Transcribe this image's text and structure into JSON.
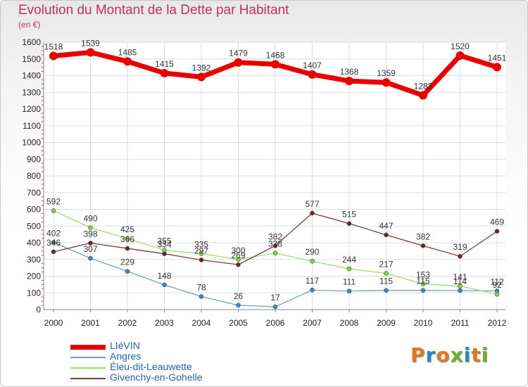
{
  "header": {
    "title": "Evolution du Montant de la Dette par Habitant",
    "subtitle": "(en €)"
  },
  "logo": {
    "text": "Proxiti",
    "colors": [
      "#e07820",
      "#2a86c8",
      "#e07820",
      "#6ab02e",
      "#2a86c8",
      "#e07820",
      "#6ab02e"
    ]
  },
  "chart_data": {
    "type": "line",
    "title": "Evolution du Montant de la Dette par Habitant",
    "subtitle": "(en €)",
    "xlabel": "",
    "ylabel": "",
    "x": [
      "2000",
      "2001",
      "2002",
      "2003",
      "2004",
      "2005",
      "2006",
      "2007",
      "2008",
      "2009",
      "2010",
      "2011",
      "2012"
    ],
    "ylim": [
      0,
      1600
    ],
    "yticks": [
      0,
      100,
      200,
      300,
      400,
      500,
      600,
      700,
      800,
      900,
      1000,
      1100,
      1200,
      1300,
      1400,
      1500,
      1600
    ],
    "grid": true,
    "legend_position": "bottom-left",
    "series": [
      {
        "name": "LIéVIN",
        "color": "#e80000",
        "marker_color": "#e80000",
        "values": [
          1518,
          1539,
          1485,
          1415,
          1392,
          1479,
          1468,
          1407,
          1368,
          1359,
          1282,
          1520,
          1451
        ]
      },
      {
        "name": "Angres",
        "color": "#6f9fce",
        "marker_color": "#3d84cc",
        "values": [
          402,
          307,
          229,
          148,
          78,
          26,
          17,
          117,
          111,
          115,
          115,
          114,
          112
        ]
      },
      {
        "name": "Éleu-dit-Leauwette",
        "color": "#99de6e",
        "marker_color": "#7ed63e",
        "values": [
          592,
          490,
          425,
          355,
          335,
          300,
          338,
          290,
          244,
          217,
          153,
          141,
          92
        ]
      },
      {
        "name": "Givenchy-en-Gohelle",
        "color": "#7a3b3b",
        "marker_color": "#6e2222",
        "values": [
          346,
          398,
          366,
          334,
          297,
          269,
          382,
          577,
          515,
          447,
          382,
          319,
          469
        ]
      }
    ]
  }
}
